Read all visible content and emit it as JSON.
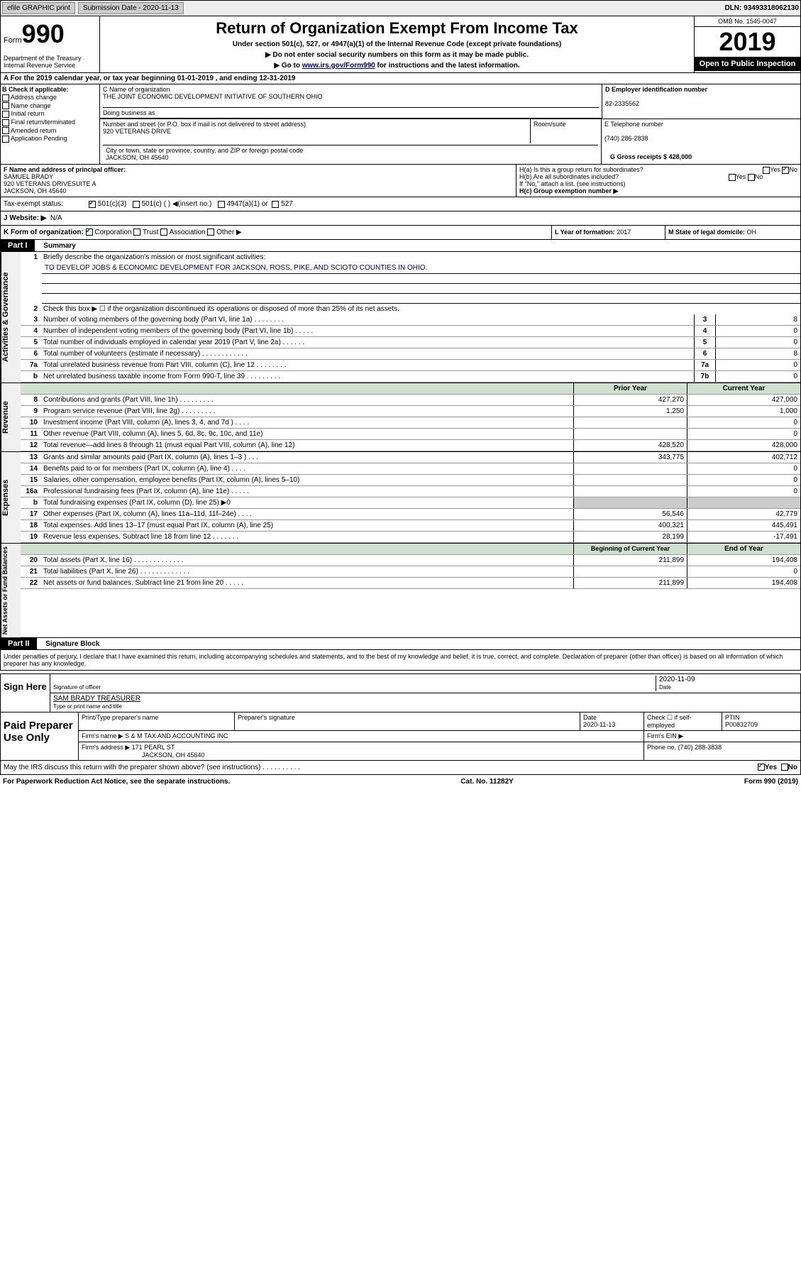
{
  "topbar": {
    "efile": "efile GRAPHIC print",
    "sub_label": "Submission Date - 2020-11-13",
    "dln": "DLN: 93493318062130"
  },
  "header": {
    "form_label": "Form",
    "form_num": "990",
    "dept": "Department of the Treasury\nInternal Revenue Service",
    "title": "Return of Organization Exempt From Income Tax",
    "sub1": "Under section 501(c), 527, or 4947(a)(1) of the Internal Revenue Code (except private foundations)",
    "sub2": "▶ Do not enter social security numbers on this form as it may be made public.",
    "sub3_pre": "▶ Go to ",
    "sub3_link": "www.irs.gov/Form990",
    "sub3_post": " for instructions and the latest information.",
    "omb": "OMB No. 1545-0047",
    "year": "2019",
    "open": "Open to Public Inspection"
  },
  "row_a": "A For the 2019 calendar year, or tax year beginning 01-01-2019   , and ending 12-31-2019",
  "checkboxes": {
    "hdr": "B Check if applicable:",
    "addr": "Address change",
    "name": "Name change",
    "init": "Initial return",
    "final": "Final return/terminated",
    "amend": "Amended return",
    "app": "Application Pending"
  },
  "org": {
    "name_label": "C Name of organization",
    "name": "THE JOINT ECONOMIC DEVELOPMENT INITIATIVE OF SOUTHERN OHIO",
    "dba_label": "Doing business as",
    "addr_label": "Number and street (or P.O. box if mail is not delivered to street address)",
    "addr": "920 VETERANS DRIVE",
    "room_label": "Room/suite",
    "city_label": "City or town, state or province, country, and ZIP or foreign postal code",
    "city": "JACKSON, OH  45640",
    "ein_label": "D Employer identification number",
    "ein": "82-2335562",
    "phone_label": "E Telephone number",
    "phone": "(740) 286-2838",
    "gross_label": "G Gross receipts $",
    "gross": "428,000"
  },
  "officer": {
    "label": "F  Name and address of principal officer:",
    "name": "SAMUEL BRADY",
    "addr": "920 VETERANS DRIVESUITE A\nJACKSON, OH  45640"
  },
  "h": {
    "a": "H(a)  Is this a group return for subordinates?",
    "b": "H(b)  Are all subordinates included?",
    "b_note": "If \"No,\" attach a list. (see instructions)",
    "c": "H(c)  Group exemption number ▶",
    "yes": "Yes",
    "no": "No"
  },
  "tax_status": {
    "label": "Tax-exempt status:",
    "c3": "501(c)(3)",
    "c": "501(c) (  ) ◀(insert no.)",
    "a1": "4947(a)(1) or",
    "s527": "527"
  },
  "website": {
    "label": "J   Website: ▶",
    "val": "N/A"
  },
  "k": {
    "label": "K Form of organization:",
    "corp": "Corporation",
    "trust": "Trust",
    "assoc": "Association",
    "other": "Other ▶"
  },
  "l": {
    "label": "L Year of formation:",
    "val": "2017"
  },
  "m": {
    "label": "M State of legal domicile:",
    "val": "OH"
  },
  "part1": {
    "hdr": "Part I",
    "title": "Summary"
  },
  "summary": {
    "l1_label": "Briefly describe the organization's mission or most significant activities:",
    "l1_val": "TO DEVELOP JOBS & ECONOMIC DEVELOPMENT FOR JACKSON, ROSS, PIKE, AND SCIOTO COUNTIES IN OHIO.",
    "l2": "Check this box ▶ ☐  if the organization discontinued its operations or disposed of more than 25% of its net assets.",
    "lines_num": [
      {
        "n": "3",
        "d": "Number of voting members of the governing body (Part VI, line 1a)   .    .    .    .    .    .    .    .",
        "box": "3",
        "v": "8"
      },
      {
        "n": "4",
        "d": "Number of independent voting members of the governing body (Part VI, line 1b)   .    .    .    .    .",
        "box": "4",
        "v": "0"
      },
      {
        "n": "5",
        "d": "Total number of individuals employed in calendar year 2019 (Part V, line 2a)   .    .    .    .    .    .",
        "box": "5",
        "v": "0"
      },
      {
        "n": "6",
        "d": "Total number of volunteers (estimate if necessary)   .    .    .    .    .    .    .    .    .    .    .    .",
        "box": "6",
        "v": "8"
      },
      {
        "n": "7a",
        "d": "Total unrelated business revenue from Part VIII, column (C), line 12   .    .    .    .    .    .    .    .",
        "box": "7a",
        "v": "0"
      },
      {
        "n": "b",
        "d": "Net unrelated business taxable income from Form 990-T, line 39   .    .    .    .    .    .    .    .    .",
        "box": "7b",
        "v": "0"
      }
    ],
    "col_prior": "Prior Year",
    "col_curr": "Current Year",
    "rev": [
      {
        "n": "8",
        "d": "Contributions and grants (Part VIII, line 1h)   .    .    .    .    .    .    .    .    .",
        "p": "427,270",
        "c": "427,000"
      },
      {
        "n": "9",
        "d": "Program service revenue (Part VIII, line 2g)   .    .    .    .    .    .    .    .    .",
        "p": "1,250",
        "c": "1,000"
      },
      {
        "n": "10",
        "d": "Investment income (Part VIII, column (A), lines 3, 4, and 7d )   .    .    .    .",
        "p": "",
        "c": "0"
      },
      {
        "n": "11",
        "d": "Other revenue (Part VIII, column (A), lines 5, 6d, 8c, 9c, 10c, and 11e)",
        "p": "",
        "c": "0"
      },
      {
        "n": "12",
        "d": "Total revenue—add lines 8 through 11 (must equal Part VIII, column (A), line 12)",
        "p": "428,520",
        "c": "428,000"
      }
    ],
    "exp": [
      {
        "n": "13",
        "d": "Grants and similar amounts paid (Part IX, column (A), lines 1–3 )   .    .    .",
        "p": "343,775",
        "c": "402,712"
      },
      {
        "n": "14",
        "d": "Benefits paid to or for members (Part IX, column (A), line 4)   .    .    .    .",
        "p": "",
        "c": "0"
      },
      {
        "n": "15",
        "d": "Salaries, other compensation, employee benefits (Part IX, column (A), lines 5–10)",
        "p": "",
        "c": "0"
      },
      {
        "n": "16a",
        "d": "Professional fundraising fees (Part IX, column (A), line 11e)   .    .    .    .    .",
        "p": "",
        "c": "0"
      },
      {
        "n": "b",
        "d": "Total fundraising expenses (Part IX, column (D), line 25) ▶0",
        "p": null,
        "c": null
      },
      {
        "n": "17",
        "d": "Other expenses (Part IX, column (A), lines 11a–11d, 11f–24e)   .    .    .    .",
        "p": "56,546",
        "c": "42,779"
      },
      {
        "n": "18",
        "d": "Total expenses. Add lines 13–17 (must equal Part IX, column (A), line 25)",
        "p": "400,321",
        "c": "445,491"
      },
      {
        "n": "19",
        "d": "Revenue less expenses. Subtract line 18 from line 12   .    .    .    .    .    .    .",
        "p": "28,199",
        "c": "-17,491"
      }
    ],
    "col_beg": "Beginning of Current Year",
    "col_end": "End of Year",
    "net": [
      {
        "n": "20",
        "d": "Total assets (Part X, line 16)   .    .    .    .    .    .    .    .    .    .    .    .    .",
        "p": "211,899",
        "c": "194,408"
      },
      {
        "n": "21",
        "d": "Total liabilities (Part X, line 26)   .    .    .    .    .    .    .    .    .    .    .    .    .",
        "p": "",
        "c": "0"
      },
      {
        "n": "22",
        "d": "Net assets or fund balances. Subtract line 21 from line 20   .    .    .    .    .",
        "p": "211,899",
        "c": "194,408"
      }
    ],
    "vert_gov": "Activities & Governance",
    "vert_rev": "Revenue",
    "vert_exp": "Expenses",
    "vert_net": "Net Assets or Fund Balances"
  },
  "part2": {
    "hdr": "Part II",
    "title": "Signature Block"
  },
  "perjury": "Under penalties of perjury, I declare that I have examined this return, including accompanying schedules and statements, and to the best of my knowledge and belief, it is true, correct, and complete. Declaration of preparer (other than officer) is based on all information of which preparer has any knowledge.",
  "sign": {
    "here": "Sign Here",
    "sig_officer": "Signature of officer",
    "date": "2020-11-09",
    "date_label": "Date",
    "name": "SAM BRADY TREASURER",
    "name_label": "Type or print name and title"
  },
  "prep": {
    "label": "Paid Preparer Use Only",
    "h_name": "Print/Type preparer's name",
    "h_sig": "Preparer's signature",
    "h_date": "Date",
    "date": "2020-11-13",
    "h_check": "Check ☐ if self-employed",
    "h_ptin": "PTIN",
    "ptin": "P00832709",
    "firm_label": "Firm's name    ▶",
    "firm": "S & M TAX AND ACCOUNTING INC",
    "ein_label": "Firm's EIN ▶",
    "addr_label": "Firm's address ▶",
    "addr": "171 PEARL ST",
    "city": "JACKSON, OH  45640",
    "phone_label": "Phone no.",
    "phone": "(740) 288-3838"
  },
  "footer": {
    "q": "May the IRS discuss this return with the preparer shown above? (see instructions)   .    .    .    .    .    .    .    .    .    .",
    "yes": "Yes",
    "no": "No",
    "pra": "For Paperwork Reduction Act Notice, see the separate instructions.",
    "cat": "Cat. No. 11282Y",
    "form": "Form 990 (2019)"
  }
}
